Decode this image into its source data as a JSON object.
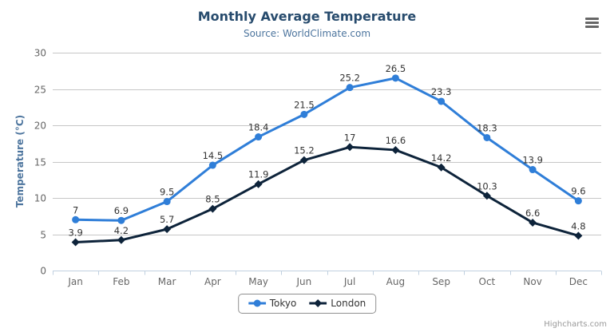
{
  "chart_data": {
    "type": "line",
    "title": "Monthly Average Temperature",
    "subtitle": "Source: WorldClimate.com",
    "categories": [
      "Jan",
      "Feb",
      "Mar",
      "Apr",
      "May",
      "Jun",
      "Jul",
      "Aug",
      "Sep",
      "Oct",
      "Nov",
      "Dec"
    ],
    "series": [
      {
        "name": "Tokyo",
        "color": "#2f7ed8",
        "marker": "circle",
        "values": [
          7,
          6.9,
          9.5,
          14.5,
          18.4,
          21.5,
          25.2,
          26.5,
          23.3,
          18.3,
          13.9,
          9.6
        ]
      },
      {
        "name": "London",
        "color": "#0d233a",
        "marker": "diamond",
        "values": [
          3.9,
          4.2,
          5.7,
          8.5,
          11.9,
          15.2,
          17,
          16.6,
          14.2,
          10.3,
          6.6,
          4.8
        ]
      }
    ],
    "xlabel": "",
    "ylabel": "Temperature (°C)",
    "ylim": [
      0,
      30
    ],
    "ytick_step": 5,
    "grid": true,
    "data_labels": true,
    "legend_position": "bottom"
  },
  "colors": {
    "title": "#274b6d",
    "subtitle": "#4d759e",
    "axis_title": "#4d759e",
    "tick_label": "#666666",
    "data_label": "#333333",
    "gridline": "#c6c6c6",
    "axis_line": "#c0d0e0",
    "legend_border": "#909090",
    "credits": "#999999",
    "export_icon": "#666666"
  },
  "export_menu": {
    "icon": "hamburger"
  },
  "credits": {
    "label": "Highcharts.com"
  }
}
